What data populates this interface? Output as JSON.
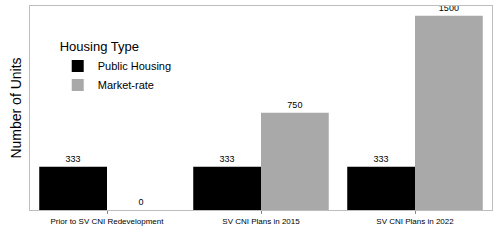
{
  "chart_data": {
    "type": "bar",
    "categories": [
      "Prior to SV CNI Redevelopment",
      "SV CNI Plans in 2015",
      "SV CNI Plans in 2022"
    ],
    "series": [
      {
        "name": "Public Housing",
        "color": "#000000",
        "values": [
          333,
          333,
          333
        ]
      },
      {
        "name": "Market-rate",
        "color": "#a9a9a9",
        "values": [
          0,
          750,
          1500
        ]
      }
    ],
    "y_label": "Number of Units",
    "legend_title": "Housing Type",
    "legend": "upper left",
    "ylim": [
      0,
      1575
    ],
    "grid": false,
    "data_labels": true,
    "tick_labels": "x"
  }
}
